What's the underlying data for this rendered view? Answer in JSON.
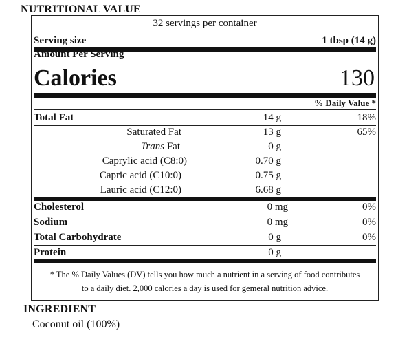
{
  "title": "NUTRITIONAL VALUE",
  "servings": "32 servings per container",
  "serving_size": {
    "label": "Serving size",
    "value": "1 tbsp (14 g)"
  },
  "amount_per_serving": "Amount Per Serving",
  "calories": {
    "label": "Calories",
    "value": "130"
  },
  "daily_value_header": "% Daily Value *",
  "nutrients": [
    {
      "name": "Total Fat",
      "amount": "14 g",
      "dv": "18%"
    },
    {
      "name": "Saturated Fat",
      "amount": "13 g",
      "dv": "65%"
    },
    {
      "name_italic": "Trans",
      "name": "Fat",
      "amount": "0 g",
      "dv": ""
    },
    {
      "name": "Caprylic acid (C8:0)",
      "amount": "0.70 g",
      "dv": ""
    },
    {
      "name": "Capric acid (C10:0)",
      "amount": "0.75 g",
      "dv": ""
    },
    {
      "name": "Lauric acid (C12:0)",
      "amount": "6.68 g",
      "dv": ""
    },
    {
      "name": "Cholesterol",
      "amount": "0 mg",
      "dv": "0%"
    },
    {
      "name": "Sodium",
      "amount": "0 mg",
      "dv": "0%"
    },
    {
      "name": "Total Carbohydrate",
      "amount": "0 g",
      "dv": "0%"
    },
    {
      "name": "Protein",
      "amount": "0 g",
      "dv": ""
    }
  ],
  "footnote": {
    "line1": "* The % Daily Values (DV) tells you how much a nutrient in a serving of food contributes",
    "line2": "to a daily diet. 2,000 calories a day is used for gemeral nutrition advice."
  },
  "ingredient": {
    "heading": "INGREDIENT",
    "text": "Coconut oil (100%)"
  }
}
